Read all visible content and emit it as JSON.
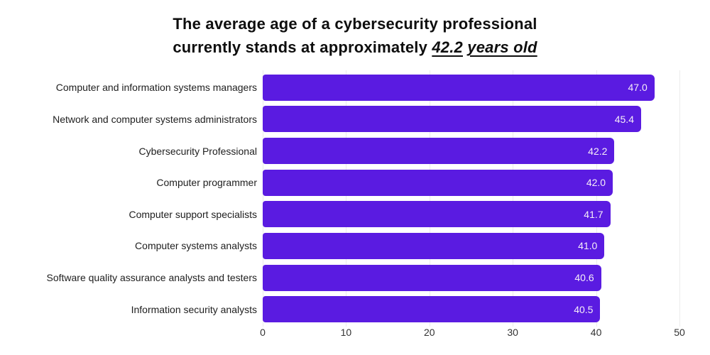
{
  "title": {
    "line1": "The average age of a cybersecurity professional",
    "line2_prefix": "currently stands at approximately",
    "line2_em1": "42.2",
    "line2_em2": "years old"
  },
  "chart_data": {
    "type": "bar",
    "orientation": "horizontal",
    "title": "The average age of a cybersecurity professional currently stands at approximately 42.2 years old",
    "categories": [
      "Computer and information systems managers",
      "Network and computer systems administrators",
      "Cybersecurity Professional",
      "Computer programmer",
      "Computer support specialists",
      "Computer systems analysts",
      "Software quality assurance analysts and testers",
      "Information security analysts"
    ],
    "values": [
      47.0,
      45.4,
      42.2,
      42.0,
      41.7,
      41.0,
      40.6,
      40.5
    ],
    "value_labels": [
      "47.0",
      "45.4",
      "42.2",
      "42.0",
      "41.7",
      "41.0",
      "40.6",
      "40.5"
    ],
    "xlabel": "",
    "ylabel": "",
    "xlim": [
      0,
      50
    ],
    "xticks": [
      "0",
      "10",
      "20",
      "30",
      "40",
      "50"
    ],
    "grid": true,
    "legend": false,
    "bar_color": "#5A1BE1",
    "value_label_color": "#F6EEF8",
    "grid_color": "#ECECEC"
  }
}
